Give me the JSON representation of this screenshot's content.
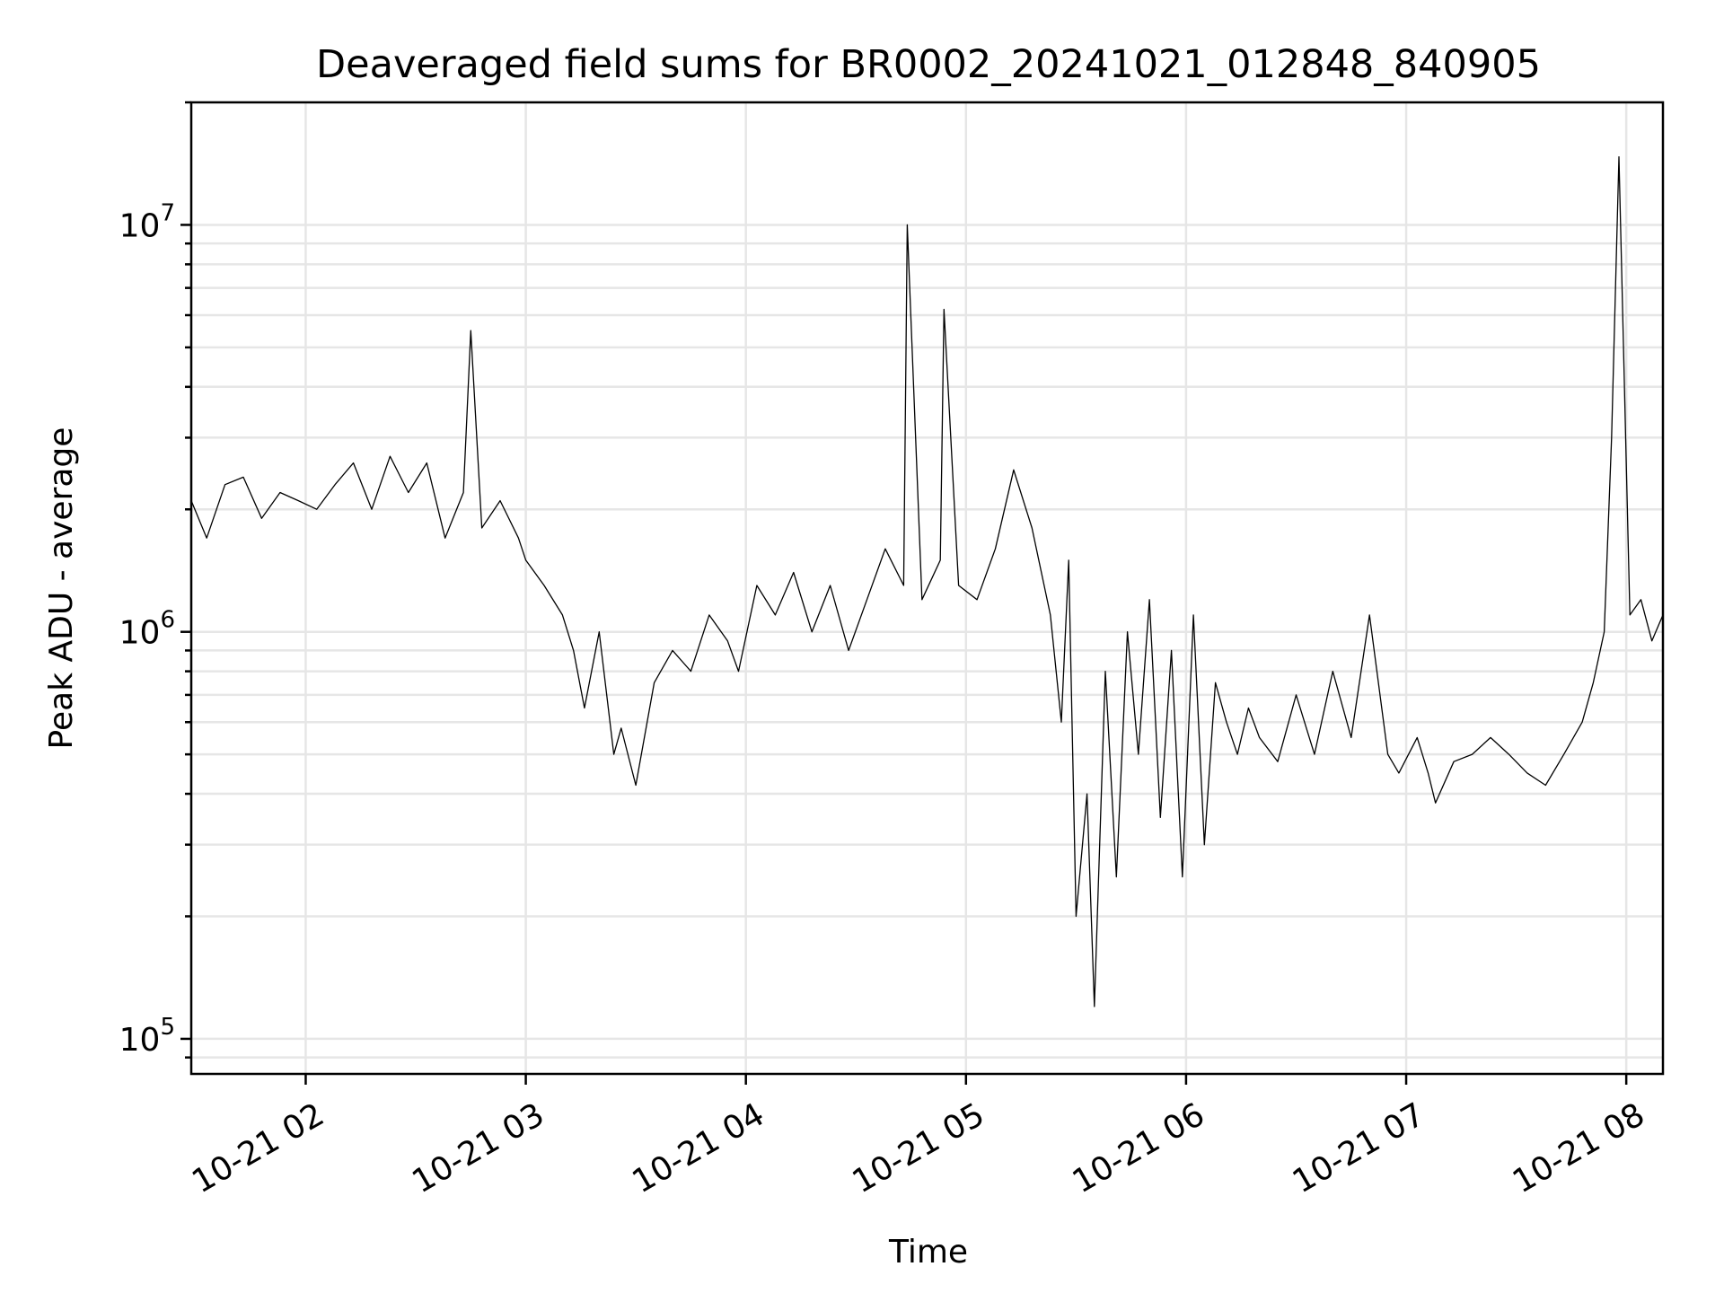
{
  "chart_data": {
    "type": "line",
    "title": "Deaveraged field sums for BR0002_20241021_012848_840905",
    "xlabel": "Time",
    "ylabel": "Peak ADU - average",
    "yscale": "log",
    "ylim": [
      82000,
      20000000
    ],
    "xlim": [
      "2024-10-21 01:28:48",
      "2024-10-21 08:10:00"
    ],
    "grid": true,
    "x_ticks": [
      {
        "value": "2024-10-21 02:00",
        "label": "10-21 02"
      },
      {
        "value": "2024-10-21 03:00",
        "label": "10-21 03"
      },
      {
        "value": "2024-10-21 04:00",
        "label": "10-21 04"
      },
      {
        "value": "2024-10-21 05:00",
        "label": "10-21 05"
      },
      {
        "value": "2024-10-21 06:00",
        "label": "10-21 06"
      },
      {
        "value": "2024-10-21 07:00",
        "label": "10-21 07"
      },
      {
        "value": "2024-10-21 08:00",
        "label": "10-21 08"
      }
    ],
    "y_ticks": [
      {
        "value": 100000,
        "base": "10",
        "exp": "5"
      },
      {
        "value": 1000000,
        "base": "10",
        "exp": "6"
      },
      {
        "value": 10000000,
        "base": "10",
        "exp": "7"
      }
    ],
    "series": [
      {
        "color": "#000000",
        "x": [
          "2024-10-21 01:28:48",
          "2024-10-21 01:33",
          "2024-10-21 01:38",
          "2024-10-21 01:43",
          "2024-10-21 01:48",
          "2024-10-21 01:53",
          "2024-10-21 01:58",
          "2024-10-21 02:03",
          "2024-10-21 02:08",
          "2024-10-21 02:13",
          "2024-10-21 02:18",
          "2024-10-21 02:23",
          "2024-10-21 02:28",
          "2024-10-21 02:33",
          "2024-10-21 02:38",
          "2024-10-21 02:43",
          "2024-10-21 02:45",
          "2024-10-21 02:48",
          "2024-10-21 02:53",
          "2024-10-21 02:58",
          "2024-10-21 03:00",
          "2024-10-21 03:05",
          "2024-10-21 03:10",
          "2024-10-21 03:13",
          "2024-10-21 03:16",
          "2024-10-21 03:20",
          "2024-10-21 03:24",
          "2024-10-21 03:26",
          "2024-10-21 03:30",
          "2024-10-21 03:35",
          "2024-10-21 03:40",
          "2024-10-21 03:45",
          "2024-10-21 03:50",
          "2024-10-21 03:55",
          "2024-10-21 03:58",
          "2024-10-21 04:03",
          "2024-10-21 04:08",
          "2024-10-21 04:13",
          "2024-10-21 04:18",
          "2024-10-21 04:23",
          "2024-10-21 04:28",
          "2024-10-21 04:33",
          "2024-10-21 04:38",
          "2024-10-21 04:43",
          "2024-10-21 04:44",
          "2024-10-21 04:48",
          "2024-10-21 04:53",
          "2024-10-21 04:54",
          "2024-10-21 04:58",
          "2024-10-21 05:03",
          "2024-10-21 05:08",
          "2024-10-21 05:13",
          "2024-10-21 05:18",
          "2024-10-21 05:23",
          "2024-10-21 05:26",
          "2024-10-21 05:28",
          "2024-10-21 05:30",
          "2024-10-21 05:33",
          "2024-10-21 05:35",
          "2024-10-21 05:38",
          "2024-10-21 05:41",
          "2024-10-21 05:44",
          "2024-10-21 05:47",
          "2024-10-21 05:50",
          "2024-10-21 05:53",
          "2024-10-21 05:56",
          "2024-10-21 05:59",
          "2024-10-21 06:02",
          "2024-10-21 06:05",
          "2024-10-21 06:08",
          "2024-10-21 06:11",
          "2024-10-21 06:14",
          "2024-10-21 06:17",
          "2024-10-21 06:20",
          "2024-10-21 06:25",
          "2024-10-21 06:30",
          "2024-10-21 06:35",
          "2024-10-21 06:40",
          "2024-10-21 06:45",
          "2024-10-21 06:50",
          "2024-10-21 06:55",
          "2024-10-21 06:58",
          "2024-10-21 07:03",
          "2024-10-21 07:06",
          "2024-10-21 07:08",
          "2024-10-21 07:13",
          "2024-10-21 07:18",
          "2024-10-21 07:23",
          "2024-10-21 07:28",
          "2024-10-21 07:33",
          "2024-10-21 07:38",
          "2024-10-21 07:43",
          "2024-10-21 07:48",
          "2024-10-21 07:51",
          "2024-10-21 07:54",
          "2024-10-21 07:56",
          "2024-10-21 07:58",
          "2024-10-21 08:01",
          "2024-10-21 08:04",
          "2024-10-21 08:07",
          "2024-10-21 08:10"
        ],
        "y": [
          2100000,
          1700000,
          2300000,
          2400000,
          1900000,
          2200000,
          2100000,
          2000000,
          2300000,
          2600000,
          2000000,
          2700000,
          2200000,
          2600000,
          1700000,
          2200000,
          5500000,
          1800000,
          2100000,
          1700000,
          1500000,
          1300000,
          1100000,
          900000,
          650000,
          1000000,
          500000,
          580000,
          420000,
          750000,
          900000,
          800000,
          1100000,
          950000,
          800000,
          1300000,
          1100000,
          1400000,
          1000000,
          1300000,
          900000,
          1200000,
          1600000,
          1300000,
          10000000,
          1200000,
          1500000,
          6200000,
          1300000,
          1200000,
          1600000,
          2500000,
          1800000,
          1100000,
          600000,
          1500000,
          200000,
          400000,
          120000,
          800000,
          250000,
          1000000,
          500000,
          1200000,
          350000,
          900000,
          250000,
          1100000,
          300000,
          750000,
          600000,
          500000,
          650000,
          550000,
          480000,
          700000,
          500000,
          800000,
          550000,
          1100000,
          500000,
          450000,
          550000,
          450000,
          380000,
          480000,
          500000,
          550000,
          500000,
          450000,
          420000,
          500000,
          600000,
          750000,
          1000000,
          3000000,
          14700000,
          1100000,
          1200000,
          950000,
          1100000
        ]
      }
    ]
  }
}
